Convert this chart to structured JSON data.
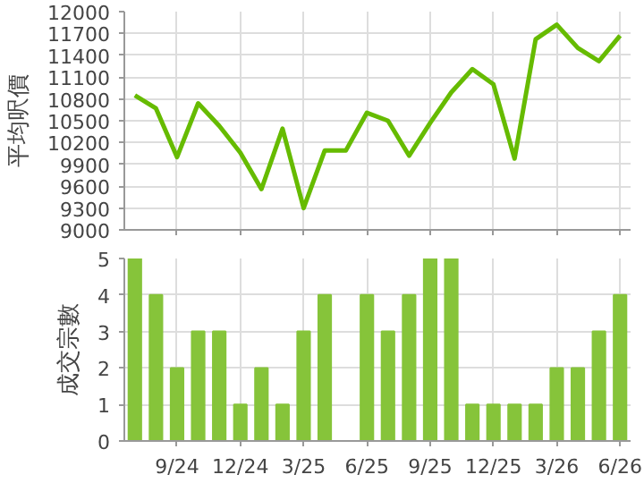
{
  "chart_data": [
    {
      "type": "line",
      "ylabel": "平均呎價",
      "categories": [
        null,
        null,
        null,
        null,
        null,
        null,
        null,
        null,
        null,
        null,
        null,
        null,
        null,
        null,
        null,
        null,
        null,
        null,
        null,
        null,
        null,
        null,
        null,
        null
      ],
      "series": [
        {
          "color": "#66bb00",
          "line_style": "solid",
          "values": [
            10850,
            10670,
            10000,
            10740,
            10430,
            10060,
            9560,
            10390,
            9300,
            10090,
            10090,
            10610,
            10500,
            10020,
            10470,
            10890,
            11210,
            11000,
            9980,
            11620,
            11820,
            11500,
            11320,
            11670
          ]
        }
      ],
      "ylim": [
        9000,
        12000
      ],
      "yticks": [
        9000,
        9300,
        9600,
        9900,
        10200,
        10500,
        10800,
        11100,
        11400,
        11700,
        12000
      ],
      "grid": true,
      "tick_labels": "y",
      "marker": "none"
    },
    {
      "type": "bar",
      "ylabel": "成交宗數",
      "categories": [
        null,
        null,
        "9/24",
        null,
        null,
        "12/24",
        null,
        null,
        "3/25",
        null,
        null,
        "6/25",
        null,
        null,
        "9/25",
        null,
        null,
        "12/25",
        null,
        null,
        "3/26",
        null,
        null,
        "6/26"
      ],
      "values": [
        5,
        4,
        2,
        3,
        3,
        1,
        2,
        1,
        3,
        4,
        0,
        4,
        3,
        4,
        5,
        5,
        1,
        1,
        1,
        1,
        2,
        2,
        3,
        4
      ],
      "color": "#86c43a",
      "ylim": [
        0,
        5
      ],
      "yticks": [
        0,
        1,
        2,
        3,
        4,
        5
      ],
      "grid": true
    }
  ]
}
